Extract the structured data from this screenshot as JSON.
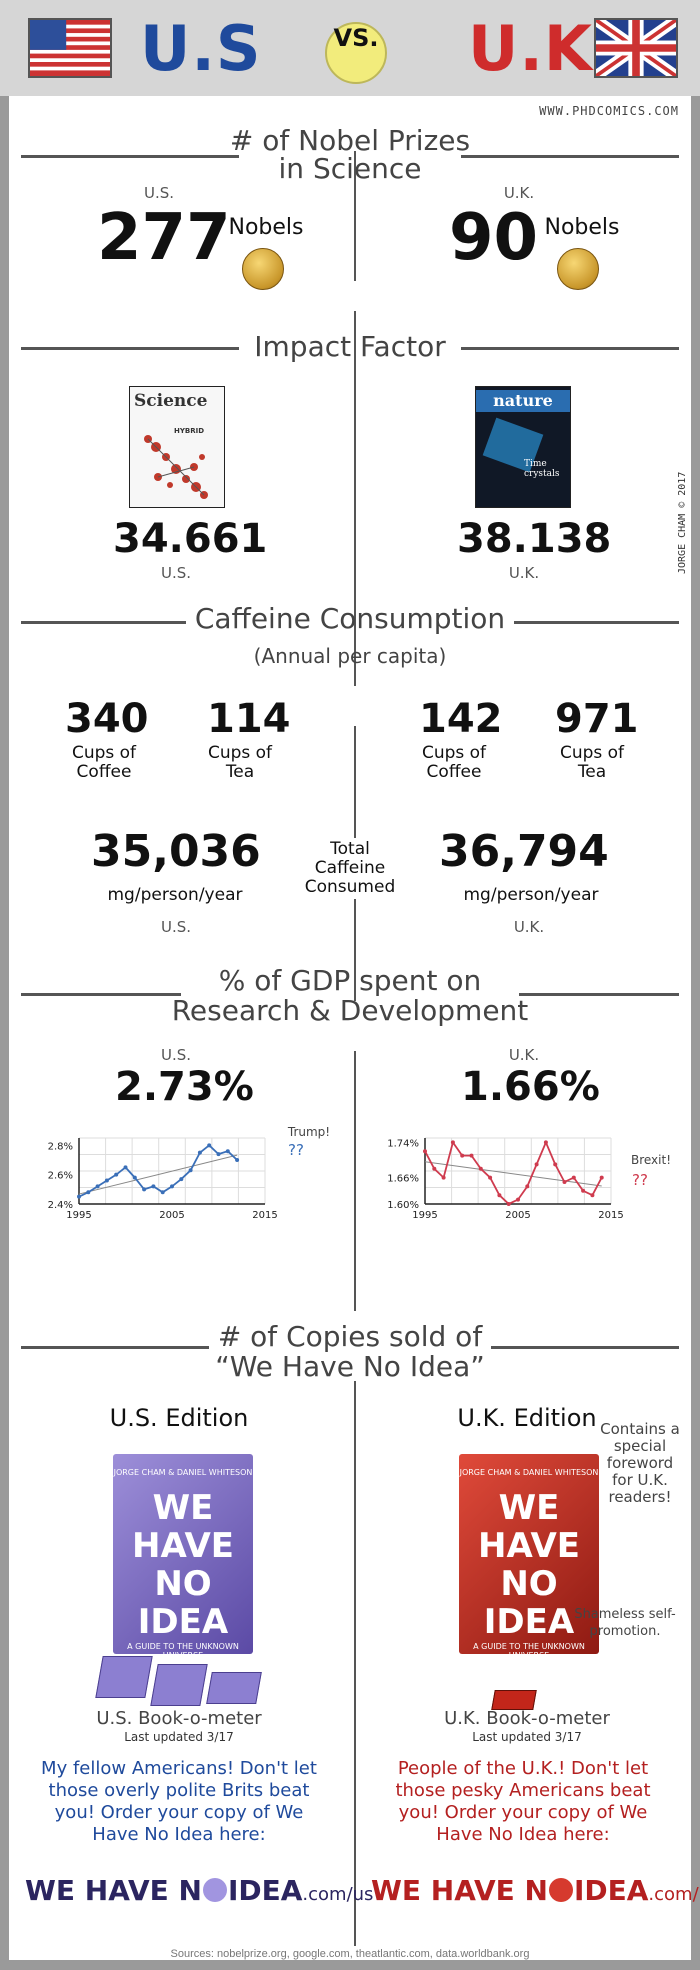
{
  "header": {
    "left": "U.S",
    "vs": "VS.",
    "right": "U.K."
  },
  "url": "WWW.PHDCOMICS.COM",
  "signature": "JORGE CHAM © 2017",
  "nobel": {
    "title_line1": "# of Nobel Prizes",
    "title_line2": "in Science",
    "us_label": "U.S.",
    "uk_label": "U.K.",
    "us_count": "277",
    "uk_count": "90",
    "unit": "Nobels"
  },
  "impact": {
    "title": "Impact Factor",
    "us_journal": "Science",
    "us_cover_text": "HYBRID",
    "uk_journal": "nature",
    "uk_cover_text": "Time crystals",
    "us_value": "34.661",
    "uk_value": "38.138",
    "us_label": "U.S.",
    "uk_label": "U.K."
  },
  "caffeine": {
    "title": "Caffeine Consumption",
    "subtitle": "(Annual per capita)",
    "us_coffee": "340",
    "us_tea": "114",
    "uk_coffee": "142",
    "uk_tea": "971",
    "coffee_label_1": "Cups of",
    "coffee_label_2": "Coffee",
    "tea_label_1": "Cups of",
    "tea_label_2": "Tea",
    "us_total": "35,036",
    "uk_total": "36,794",
    "total_unit": "mg/person/year",
    "total_label_1": "Total",
    "total_label_2": "Caffeine",
    "total_label_3": "Consumed",
    "us_label": "U.S.",
    "uk_label": "U.K."
  },
  "rd": {
    "title_line1": "% of GDP spent on",
    "title_line2": "Research & Development",
    "us_label": "U.S.",
    "uk_label": "U.K.",
    "us_value": "2.73%",
    "uk_value": "1.66%",
    "us_note": "Trump!",
    "uk_note": "Brexit!",
    "qq": "??"
  },
  "chart_data": [
    {
      "type": "line",
      "x": [
        1995,
        1996,
        1997,
        1998,
        1999,
        2000,
        2001,
        2002,
        2003,
        2004,
        2005,
        2006,
        2007,
        2008,
        2009,
        2010,
        2011,
        2012
      ],
      "series": [
        {
          "values": [
            2.45,
            2.48,
            2.52,
            2.56,
            2.6,
            2.65,
            2.58,
            2.5,
            2.52,
            2.48,
            2.52,
            2.57,
            2.63,
            2.75,
            2.8,
            2.74,
            2.76,
            2.7
          ]
        }
      ],
      "yticks": [
        "2.4%",
        "2.6%",
        "2.8%"
      ],
      "xticks": [
        "1995",
        "2005",
        "2015"
      ],
      "ylim": [
        2.4,
        2.85
      ],
      "xlim": [
        1995,
        2015
      ],
      "trendline": true,
      "color": "#3a6fb8"
    },
    {
      "type": "line",
      "x": [
        1995,
        1996,
        1997,
        1998,
        1999,
        2000,
        2001,
        2002,
        2003,
        2004,
        2005,
        2006,
        2007,
        2008,
        2009,
        2010,
        2011,
        2012,
        2013,
        2014
      ],
      "series": [
        {
          "values": [
            1.72,
            1.68,
            1.66,
            1.74,
            1.71,
            1.71,
            1.68,
            1.66,
            1.62,
            1.6,
            1.61,
            1.64,
            1.69,
            1.74,
            1.69,
            1.65,
            1.66,
            1.63,
            1.62,
            1.66
          ]
        }
      ],
      "yticks": [
        "1.60%",
        "1.66%",
        "1.74%"
      ],
      "xticks": [
        "1995",
        "2005",
        "2015"
      ],
      "ylim": [
        1.6,
        1.75
      ],
      "xlim": [
        1995,
        2015
      ],
      "trendline": true,
      "color": "#cf3b4e"
    }
  ],
  "copies": {
    "title_line1": "# of Copies sold of",
    "title_line2": "“We Have No Idea”",
    "us_edition": "U.S. Edition",
    "uk_edition": "U.K. Edition",
    "book_title_1": "WE",
    "book_title_2": "HAVE",
    "book_title_3": "NO",
    "book_title_4": "IDEA",
    "book_authors": "JORGE CHAM & DANIEL WHITESON",
    "book_subtitle": "A GUIDE TO THE UNKNOWN UNIVERSE",
    "uk_note": "Contains a special foreword for U.K. readers!",
    "promo_note": "Shameless self-promotion.",
    "us_meter": "U.S. Book-o-meter",
    "uk_meter": "U.K. Book-o-meter",
    "updated": "Last updated 3/17",
    "us_plea": "My fellow Americans! Don't let those overly polite Brits beat you! Order your copy of We Have No Idea here:",
    "uk_plea": "People of the U.K.! Don't let those pesky Americans beat you! Order your copy of We Have No Idea here:",
    "logo_a": "WE HAVE N",
    "logo_b": "IDEA",
    "us_domain": ".com/us",
    "uk_domain": ".com/uk",
    "us_color": "#2b2560",
    "uk_color": "#b42020"
  },
  "sources": "Sources: nobelprize.org, google.com, theatlantic.com, data.worldbank.org"
}
